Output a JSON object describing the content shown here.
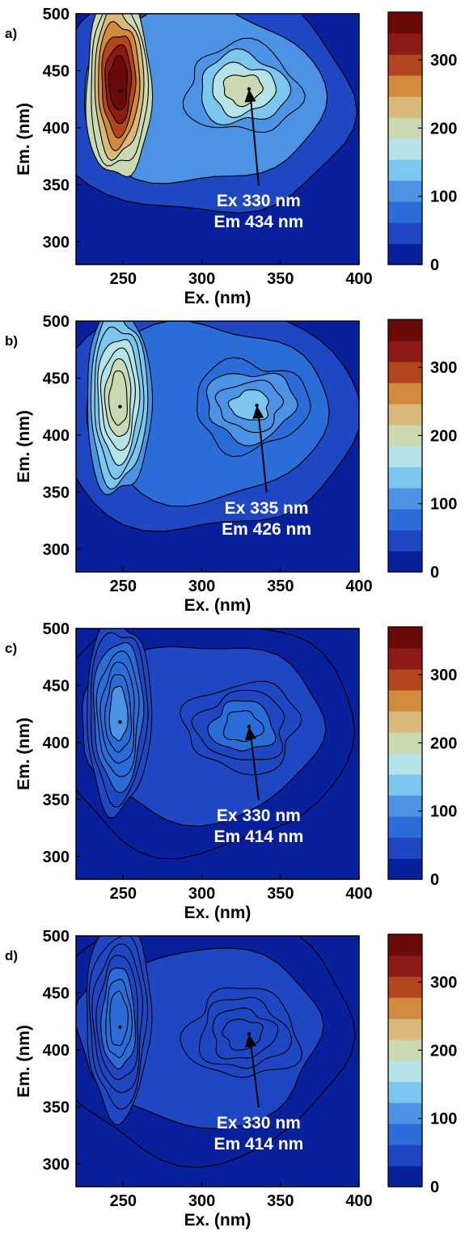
{
  "colormap": [
    "#08209b",
    "#1f47c4",
    "#2a6cd8",
    "#4c93e6",
    "#7cc7ef",
    "#b6e3e8",
    "#cbd9b3",
    "#d9b879",
    "#d28a3c",
    "#b4461f",
    "#8d1a14",
    "#6a0a0a"
  ],
  "chart_data": [
    {
      "type": "heatmap",
      "panel_label": "a)",
      "xlabel": "Ex. (nm)",
      "ylabel": "Em. (nm)",
      "xlim": [
        220,
        400
      ],
      "ylim": [
        280,
        500
      ],
      "xticks": [
        250,
        300,
        350,
        400
      ],
      "yticks": [
        300,
        350,
        400,
        450,
        500
      ],
      "colorbar": {
        "range": [
          0,
          370
        ],
        "ticks": [
          0,
          100,
          200,
          300
        ]
      },
      "peaks": [
        {
          "ex": 248,
          "em": 432,
          "value": 360
        },
        {
          "ex": 330,
          "em": 434,
          "value": 205
        }
      ],
      "annotation": {
        "lines": [
          "Ex 330 nm",
          "Em 434 nm"
        ],
        "ex": 330,
        "em": 434
      }
    },
    {
      "type": "heatmap",
      "panel_label": "b)",
      "xlabel": "Ex. (nm)",
      "ylabel": "Em. (nm)",
      "xlim": [
        220,
        400
      ],
      "ylim": [
        280,
        500
      ],
      "xticks": [
        250,
        300,
        350,
        400
      ],
      "yticks": [
        300,
        350,
        400,
        450,
        500
      ],
      "colorbar": {
        "range": [
          0,
          370
        ],
        "ticks": [
          0,
          100,
          200,
          300
        ]
      },
      "peaks": [
        {
          "ex": 248,
          "em": 425,
          "value": 215
        },
        {
          "ex": 335,
          "em": 426,
          "value": 140
        }
      ],
      "annotation": {
        "lines": [
          "Ex 335 nm",
          "Em 426 nm"
        ],
        "ex": 335,
        "em": 426
      }
    },
    {
      "type": "heatmap",
      "panel_label": "c)",
      "xlabel": "Ex. (nm)",
      "ylabel": "Em. (nm)",
      "xlim": [
        220,
        400
      ],
      "ylim": [
        280,
        500
      ],
      "xticks": [
        250,
        300,
        350,
        400
      ],
      "yticks": [
        300,
        350,
        400,
        450,
        500
      ],
      "colorbar": {
        "range": [
          0,
          370
        ],
        "ticks": [
          0,
          100,
          200,
          300
        ]
      },
      "peaks": [
        {
          "ex": 248,
          "em": 418,
          "value": 95
        },
        {
          "ex": 330,
          "em": 414,
          "value": 75
        }
      ],
      "annotation": {
        "lines": [
          "Ex 330 nm",
          "Em 414 nm"
        ],
        "ex": 330,
        "em": 414
      }
    },
    {
      "type": "heatmap",
      "panel_label": "d)",
      "xlabel": "Ex. (nm)",
      "ylabel": "Em. (nm)",
      "xlim": [
        220,
        400
      ],
      "ylim": [
        280,
        500
      ],
      "xticks": [
        250,
        300,
        350,
        400
      ],
      "yticks": [
        300,
        350,
        400,
        450,
        500
      ],
      "colorbar": {
        "range": [
          0,
          370
        ],
        "ticks": [
          0,
          100,
          200,
          300
        ]
      },
      "peaks": [
        {
          "ex": 248,
          "em": 420,
          "value": 80
        },
        {
          "ex": 330,
          "em": 414,
          "value": 60
        }
      ],
      "annotation": {
        "lines": [
          "Ex 330 nm",
          "Em 414 nm"
        ],
        "ex": 330,
        "em": 414
      }
    }
  ]
}
